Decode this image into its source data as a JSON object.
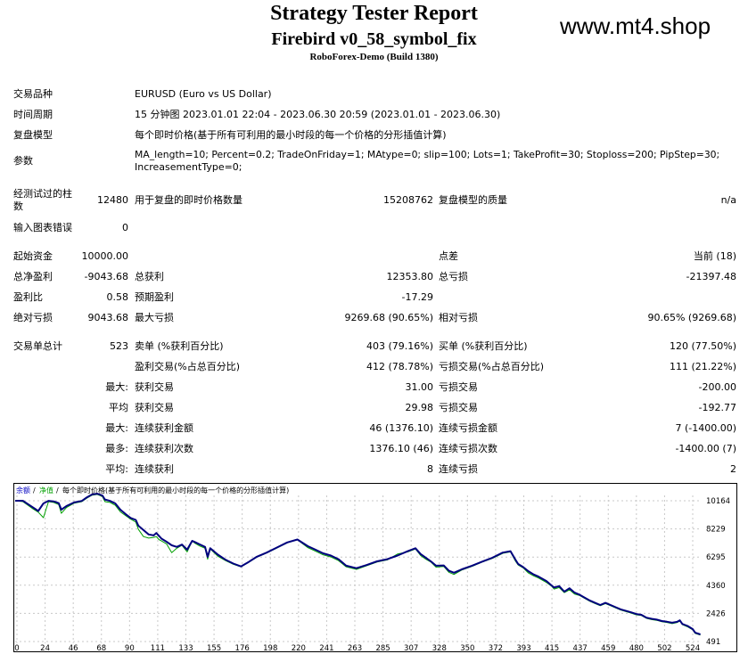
{
  "header": {
    "title": "Strategy Tester Report",
    "subtitle": "Firebird v0_58_symbol_fix",
    "server": "RoboForex-Demo (Build 1380)",
    "watermark": "www.mt4.shop"
  },
  "info": {
    "symbol_label": "交易品种",
    "symbol": "EURUSD (Euro vs US Dollar)",
    "period_label": "时间周期",
    "period": "15 分钟图 2023.01.01 22:04 - 2023.06.30 20:59 (2023.01.01 - 2023.06.30)",
    "model_label": "复盘模型",
    "model": "每个即时价格(基于所有可利用的最小时段的每一个价格的分形插值计算)",
    "params_label": "参数",
    "params_line1": "MA_length=10; Percent=0.2; TradeOnFriday=1; MAtype=0; slip=100; Lots=1; TakeProfit=30; Stoploss=200; PipStep=30;",
    "params_line2": "IncreasementType=0;"
  },
  "bars": {
    "bars_label_1": "经测试过的柱",
    "bars_label_2": "数",
    "bars_value": "12480",
    "ticks_label": "用于复盘的即时价格数量",
    "ticks_value": "15208762",
    "quality_label": "复盘模型的质量",
    "quality_value": "n/a",
    "errors_label": "输入图表错误",
    "errors_value": "0"
  },
  "stats": {
    "initial_deposit_label": "起始资金",
    "initial_deposit": "10000.00",
    "spread_label": "点差",
    "spread": "当前 (18)",
    "net_profit_label": "总净盈利",
    "net_profit": "-9043.68",
    "gross_profit_label": "总获利",
    "gross_profit": "12353.80",
    "gross_loss_label": "总亏损",
    "gross_loss": "-21397.48",
    "profit_factor_label": "盈利比",
    "profit_factor": "0.58",
    "expected_payoff_label": "预期盈利",
    "expected_payoff": "-17.29",
    "abs_drawdown_label": "绝对亏损",
    "abs_drawdown": "9043.68",
    "max_drawdown_label": "最大亏损",
    "max_drawdown": "9269.68 (90.65%)",
    "rel_drawdown_label": "相对亏损",
    "rel_drawdown": "90.65% (9269.68)"
  },
  "trades": {
    "total_label": "交易单总计",
    "total": "523",
    "short_label": "卖单 (%获利百分比)",
    "short": "403 (79.16%)",
    "long_label": "买单 (%获利百分比)",
    "long": "120 (77.50%)",
    "profit_trades_label": "盈利交易(%占总百分比)",
    "profit_trades": "412 (78.78%)",
    "loss_trades_label": "亏损交易(%占总百分比)",
    "loss_trades": "111 (21.22%)",
    "largest_label": "最大:",
    "largest_profit_label": "获利交易",
    "largest_profit": "31.00",
    "largest_loss_label": "亏损交易",
    "largest_loss": "-200.00",
    "average_label": "平均",
    "average_profit_label": "获利交易",
    "average_profit": "29.98",
    "average_loss_label": "亏损交易",
    "average_loss": "-192.77",
    "max_label": "最大:",
    "max_consec_wins_label": "连续获利金额",
    "max_consec_wins": "46 (1376.10)",
    "max_consec_losses_label": "连续亏损金额",
    "max_consec_losses": "7 (-1400.00)",
    "maximal_label": "最多:",
    "maximal_consec_profit_label": "连续获利次数",
    "maximal_consec_profit": "1376.10 (46)",
    "maximal_consec_loss_label": "连续亏损次数",
    "maximal_consec_loss": "-1400.00 (7)",
    "avg_label": "平均:",
    "avg_consec_wins_label": "连续获利",
    "avg_consec_wins": "8",
    "avg_consec_losses_label": "连续亏损",
    "avg_consec_losses": "2"
  },
  "chart_data": {
    "type": "line",
    "legend": [
      "余额",
      "净值",
      "每个即时价格(基于所有可利用的最小时段的每一个价格的分形插值计算)"
    ],
    "legend_colors": [
      "#0000c0",
      "#00a000",
      "#000000"
    ],
    "xticks": [
      "0",
      "24",
      "46",
      "68",
      "90",
      "111",
      "133",
      "155",
      "176",
      "198",
      "220",
      "241",
      "263",
      "285",
      "307",
      "328",
      "350",
      "372",
      "393",
      "415",
      "437",
      "459",
      "480",
      "502",
      "524"
    ],
    "yticks": [
      "10164",
      "8229",
      "6295",
      "4360",
      "2426",
      "491"
    ],
    "ylim": [
      491,
      10164
    ],
    "xlim": [
      0,
      535
    ],
    "series": [
      {
        "name": "余额",
        "color": "#00007f",
        "x": [
          0,
          6,
          10,
          14,
          18,
          22,
          26,
          30,
          34,
          36,
          40,
          46,
          52,
          56,
          60,
          64,
          68,
          70,
          74,
          78,
          82,
          86,
          90,
          94,
          96,
          100,
          104,
          108,
          110,
          112,
          114,
          118,
          122,
          126,
          130,
          134,
          138,
          140,
          144,
          148,
          150,
          152,
          158,
          164,
          170,
          176,
          182,
          188,
          196,
          204,
          212,
          220,
          228,
          234,
          240,
          246,
          252,
          258,
          266,
          274,
          282,
          290,
          298,
          306,
          312,
          316,
          320,
          324,
          328,
          334,
          338,
          342,
          348,
          356,
          364,
          372,
          380,
          386,
          390,
          392,
          396,
          400,
          404,
          408,
          414,
          418,
          420,
          424,
          428,
          432,
          436,
          440,
          444,
          448,
          452,
          456,
          460,
          464,
          468,
          472,
          476,
          480,
          484,
          488,
          492,
          496,
          500,
          504,
          508,
          512,
          516,
          518,
          520,
          524,
          528,
          530,
          534
        ],
        "y": [
          10164,
          10164,
          9930,
          9700,
          9460,
          9980,
          10160,
          10120,
          10000,
          9550,
          9800,
          10050,
          10150,
          10400,
          10600,
          10650,
          10520,
          10250,
          10150,
          9980,
          9550,
          9250,
          8980,
          8850,
          8450,
          8150,
          7850,
          7780,
          7950,
          7760,
          7560,
          7350,
          7100,
          6990,
          7150,
          6800,
          7410,
          7330,
          7160,
          6990,
          6310,
          6900,
          6460,
          6110,
          5850,
          5650,
          5960,
          6300,
          6600,
          6950,
          7300,
          7500,
          7050,
          6800,
          6550,
          6400,
          6150,
          5700,
          5530,
          5750,
          6000,
          6150,
          6400,
          6700,
          6900,
          6500,
          6250,
          6000,
          5700,
          5720,
          5350,
          5220,
          5450,
          5700,
          5980,
          6250,
          6600,
          6700,
          6100,
          5820,
          5600,
          5320,
          5100,
          4950,
          4650,
          4350,
          4200,
          4300,
          3920,
          4150,
          3850,
          3700,
          3500,
          3300,
          3150,
          3000,
          3150,
          3000,
          2850,
          2700,
          2600,
          2500,
          2380,
          2330,
          2130,
          2050,
          2000,
          1900,
          1850,
          1780,
          1850,
          1950,
          1700,
          1560,
          1350,
          1100,
          980
        ]
      },
      {
        "name": "净值",
        "color": "#00a000",
        "x": [
          0,
          6,
          10,
          14,
          18,
          22,
          26,
          30,
          34,
          36,
          40,
          46,
          52,
          56,
          60,
          64,
          68,
          70,
          74,
          78,
          82,
          86,
          90,
          94,
          96,
          100,
          104,
          108,
          110,
          112,
          114,
          118,
          122,
          126,
          130,
          134,
          138,
          140,
          144,
          148,
          150,
          152,
          158,
          164,
          170,
          176,
          182,
          188,
          196,
          204,
          212,
          220,
          228,
          234,
          240,
          246,
          252,
          258,
          266,
          274,
          282,
          290,
          298,
          306,
          312,
          316,
          320,
          324,
          328,
          334,
          338,
          342,
          348,
          356,
          364,
          372,
          380,
          386,
          390,
          392,
          396,
          400,
          404,
          408,
          414,
          418,
          420,
          424,
          428,
          432,
          436,
          440,
          444,
          448,
          452,
          456,
          460,
          464,
          468,
          472,
          476,
          480,
          484,
          488,
          492,
          496,
          500,
          504,
          508,
          512,
          516,
          518,
          520,
          524,
          528,
          530,
          534
        ],
        "y": [
          10164,
          10100,
          9850,
          9600,
          9380,
          9000,
          10100,
          10050,
          9900,
          9300,
          9700,
          10000,
          10100,
          10350,
          10550,
          10600,
          10450,
          10100,
          10050,
          9850,
          9400,
          9150,
          8900,
          8700,
          8200,
          7700,
          7600,
          7650,
          7700,
          7500,
          7400,
          7200,
          6600,
          6900,
          7100,
          6650,
          7400,
          7250,
          7050,
          6900,
          6150,
          6850,
          6350,
          6050,
          5800,
          5620,
          5930,
          6270,
          6570,
          6920,
          7270,
          7480,
          6950,
          6700,
          6450,
          6300,
          6050,
          5620,
          5450,
          5700,
          5950,
          6100,
          6500,
          6650,
          6850,
          6400,
          6150,
          5950,
          5600,
          5650,
          5250,
          5100,
          5400,
          5650,
          5950,
          6200,
          6550,
          6650,
          6000,
          5750,
          5550,
          5200,
          5000,
          4850,
          4550,
          4300,
          4100,
          4200,
          3850,
          4050,
          3750,
          3650,
          3450,
          3250,
          3100,
          2950,
          3100,
          2950,
          2800,
          2650,
          2550,
          2450,
          2330,
          2280,
          2080,
          2000,
          1950,
          1850,
          1800,
          1720,
          1800,
          1900,
          1650,
          1500,
          1300,
          1050,
          930
        ]
      }
    ]
  }
}
